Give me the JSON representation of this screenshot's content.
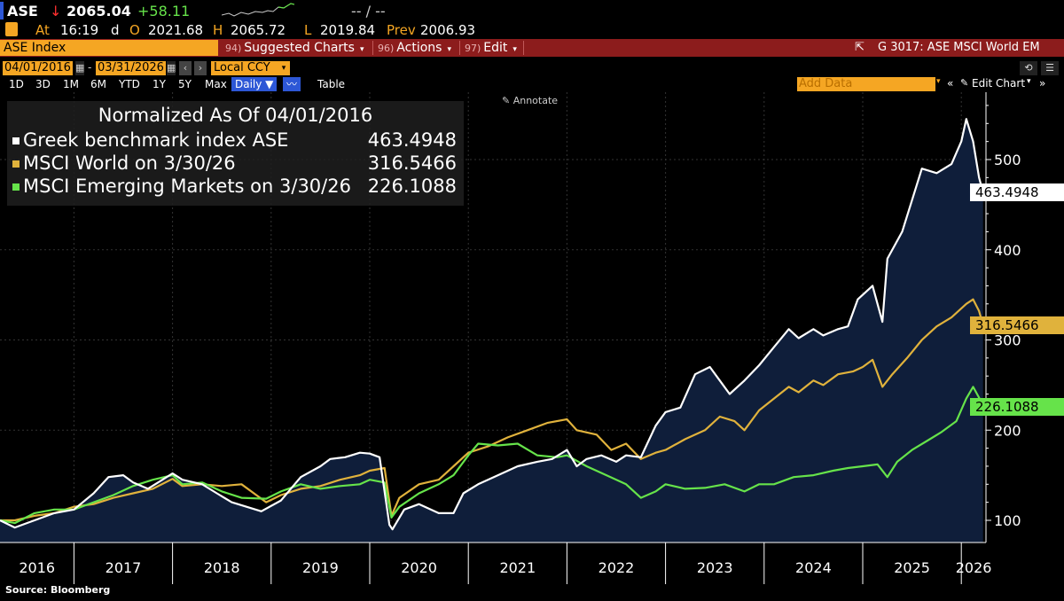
{
  "quote": {
    "ticker": "ASE",
    "arrow": "↓",
    "last": "2065.04",
    "change": "+58.11",
    "bidask": "-- / --",
    "at_label": "At",
    "time": "16:19",
    "d": "d",
    "open_label": "O",
    "open": "2021.68",
    "high_label": "H",
    "high": "2065.72",
    "low_label": "L",
    "low": "2019.84",
    "prev_label": "Prev",
    "prev": "2006.93"
  },
  "toolbar": {
    "security": "ASE Index",
    "suggested_num": "94)",
    "suggested_label": "Suggested Charts",
    "actions_num": "96)",
    "actions_label": "Actions",
    "edit_num": "97)",
    "edit_label": "Edit",
    "chart_title": "G 3017: ASE MSCI World EM"
  },
  "range": {
    "start": "04/01/2016",
    "end": "03/31/2026",
    "currency": "Local CCY"
  },
  "periods": [
    "1D",
    "3D",
    "1M",
    "6M",
    "YTD",
    "1Y",
    "5Y",
    "Max"
  ],
  "frequency": "Daily ▼",
  "table_label": "Table",
  "add_data_placeholder": "Add Data",
  "edit_chart_label": "Edit Chart",
  "annotate_label": "Annotate",
  "source": "Source: Bloomberg",
  "colors": {
    "ase": "#ffffff",
    "world": "#e0b23c",
    "em": "#66e34a",
    "area": "#0f1e3a",
    "toolbar": "#8c1c1c",
    "orange": "#f5a623"
  },
  "chart_data": {
    "type": "line",
    "title": "Normalized As Of 04/01/2016",
    "xlabel": "",
    "ylabel": "",
    "xlim": [
      2016.25,
      2026.25
    ],
    "ylim": [
      80,
      570
    ],
    "yticks": [
      100,
      200,
      300,
      400,
      500
    ],
    "xticks": [
      "2016",
      "2017",
      "2018",
      "2019",
      "2020",
      "2021",
      "2022",
      "2023",
      "2024",
      "2025",
      "2026"
    ],
    "series": [
      {
        "name": "Greek benchmark index ASE",
        "last_value": "463.4948",
        "area_fill": true,
        "points": [
          [
            2016.25,
            100
          ],
          [
            2016.4,
            92
          ],
          [
            2016.6,
            100
          ],
          [
            2016.8,
            108
          ],
          [
            2017.0,
            112
          ],
          [
            2017.2,
            130
          ],
          [
            2017.35,
            148
          ],
          [
            2017.5,
            150
          ],
          [
            2017.6,
            142
          ],
          [
            2017.75,
            135
          ],
          [
            2018.0,
            152
          ],
          [
            2018.1,
            145
          ],
          [
            2018.3,
            140
          ],
          [
            2018.45,
            130
          ],
          [
            2018.6,
            120
          ],
          [
            2018.75,
            115
          ],
          [
            2018.9,
            110
          ],
          [
            2019.1,
            122
          ],
          [
            2019.3,
            148
          ],
          [
            2019.5,
            160
          ],
          [
            2019.6,
            168
          ],
          [
            2019.75,
            170
          ],
          [
            2019.9,
            175
          ],
          [
            2020.0,
            174
          ],
          [
            2020.1,
            170
          ],
          [
            2020.2,
            95
          ],
          [
            2020.23,
            90
          ],
          [
            2020.35,
            112
          ],
          [
            2020.5,
            118
          ],
          [
            2020.7,
            108
          ],
          [
            2020.85,
            108
          ],
          [
            2020.95,
            130
          ],
          [
            2021.1,
            140
          ],
          [
            2021.3,
            150
          ],
          [
            2021.5,
            160
          ],
          [
            2021.7,
            165
          ],
          [
            2021.85,
            168
          ],
          [
            2022.0,
            178
          ],
          [
            2022.1,
            160
          ],
          [
            2022.2,
            168
          ],
          [
            2022.35,
            172
          ],
          [
            2022.5,
            165
          ],
          [
            2022.6,
            172
          ],
          [
            2022.75,
            170
          ],
          [
            2022.9,
            205
          ],
          [
            2023.0,
            220
          ],
          [
            2023.15,
            225
          ],
          [
            2023.3,
            262
          ],
          [
            2023.45,
            270
          ],
          [
            2023.55,
            255
          ],
          [
            2023.65,
            240
          ],
          [
            2023.8,
            255
          ],
          [
            2023.95,
            272
          ],
          [
            2024.1,
            292
          ],
          [
            2024.25,
            312
          ],
          [
            2024.35,
            302
          ],
          [
            2024.5,
            312
          ],
          [
            2024.6,
            305
          ],
          [
            2024.75,
            312
          ],
          [
            2024.85,
            315
          ],
          [
            2024.95,
            345
          ],
          [
            2025.1,
            360
          ],
          [
            2025.2,
            320
          ],
          [
            2025.25,
            390
          ],
          [
            2025.4,
            420
          ],
          [
            2025.5,
            455
          ],
          [
            2025.6,
            490
          ],
          [
            2025.75,
            485
          ],
          [
            2025.9,
            495
          ],
          [
            2026.0,
            520
          ],
          [
            2026.05,
            545
          ],
          [
            2026.12,
            520
          ],
          [
            2026.18,
            480
          ],
          [
            2026.22,
            463.4948
          ]
        ]
      },
      {
        "name": "MSCI World on 3/30/26",
        "last_value": "316.5466",
        "points": [
          [
            2016.25,
            100
          ],
          [
            2016.4,
            100
          ],
          [
            2016.6,
            105
          ],
          [
            2016.8,
            108
          ],
          [
            2017.0,
            115
          ],
          [
            2017.2,
            118
          ],
          [
            2017.4,
            125
          ],
          [
            2017.6,
            130
          ],
          [
            2017.8,
            135
          ],
          [
            2018.0,
            146
          ],
          [
            2018.1,
            138
          ],
          [
            2018.3,
            140
          ],
          [
            2018.5,
            138
          ],
          [
            2018.7,
            140
          ],
          [
            2018.95,
            120
          ],
          [
            2019.1,
            128
          ],
          [
            2019.3,
            135
          ],
          [
            2019.5,
            138
          ],
          [
            2019.7,
            145
          ],
          [
            2019.9,
            150
          ],
          [
            2020.0,
            155
          ],
          [
            2020.15,
            158
          ],
          [
            2020.22,
            105
          ],
          [
            2020.3,
            125
          ],
          [
            2020.5,
            140
          ],
          [
            2020.7,
            145
          ],
          [
            2020.85,
            160
          ],
          [
            2021.0,
            175
          ],
          [
            2021.2,
            182
          ],
          [
            2021.4,
            192
          ],
          [
            2021.6,
            200
          ],
          [
            2021.8,
            208
          ],
          [
            2022.0,
            212
          ],
          [
            2022.1,
            200
          ],
          [
            2022.3,
            195
          ],
          [
            2022.45,
            178
          ],
          [
            2022.6,
            185
          ],
          [
            2022.75,
            168
          ],
          [
            2022.9,
            175
          ],
          [
            2023.0,
            178
          ],
          [
            2023.2,
            190
          ],
          [
            2023.4,
            200
          ],
          [
            2023.55,
            215
          ],
          [
            2023.7,
            210
          ],
          [
            2023.8,
            200
          ],
          [
            2023.95,
            222
          ],
          [
            2024.1,
            235
          ],
          [
            2024.25,
            248
          ],
          [
            2024.35,
            242
          ],
          [
            2024.5,
            255
          ],
          [
            2024.6,
            250
          ],
          [
            2024.75,
            262
          ],
          [
            2024.9,
            265
          ],
          [
            2025.0,
            270
          ],
          [
            2025.1,
            278
          ],
          [
            2025.2,
            248
          ],
          [
            2025.3,
            262
          ],
          [
            2025.45,
            280
          ],
          [
            2025.6,
            300
          ],
          [
            2025.75,
            315
          ],
          [
            2025.9,
            325
          ],
          [
            2026.05,
            340
          ],
          [
            2026.12,
            345
          ],
          [
            2026.18,
            332
          ],
          [
            2026.22,
            316.5466
          ]
        ]
      },
      {
        "name": "MSCI Emerging Markets on 3/30/26",
        "last_value": "226.1088",
        "points": [
          [
            2016.25,
            100
          ],
          [
            2016.4,
            97
          ],
          [
            2016.6,
            108
          ],
          [
            2016.8,
            112
          ],
          [
            2017.0,
            112
          ],
          [
            2017.2,
            120
          ],
          [
            2017.4,
            128
          ],
          [
            2017.6,
            138
          ],
          [
            2017.8,
            145
          ],
          [
            2018.0,
            150
          ],
          [
            2018.1,
            140
          ],
          [
            2018.3,
            142
          ],
          [
            2018.5,
            132
          ],
          [
            2018.7,
            125
          ],
          [
            2018.95,
            124
          ],
          [
            2019.1,
            132
          ],
          [
            2019.3,
            140
          ],
          [
            2019.5,
            135
          ],
          [
            2019.7,
            138
          ],
          [
            2019.9,
            140
          ],
          [
            2020.0,
            145
          ],
          [
            2020.15,
            142
          ],
          [
            2020.22,
            103
          ],
          [
            2020.3,
            115
          ],
          [
            2020.5,
            130
          ],
          [
            2020.7,
            140
          ],
          [
            2020.85,
            150
          ],
          [
            2021.0,
            172
          ],
          [
            2021.1,
            185
          ],
          [
            2021.3,
            183
          ],
          [
            2021.5,
            185
          ],
          [
            2021.7,
            172
          ],
          [
            2021.9,
            170
          ],
          [
            2022.0,
            172
          ],
          [
            2022.2,
            160
          ],
          [
            2022.4,
            150
          ],
          [
            2022.6,
            140
          ],
          [
            2022.75,
            125
          ],
          [
            2022.9,
            132
          ],
          [
            2023.0,
            140
          ],
          [
            2023.2,
            135
          ],
          [
            2023.4,
            136
          ],
          [
            2023.6,
            140
          ],
          [
            2023.8,
            132
          ],
          [
            2023.95,
            140
          ],
          [
            2024.1,
            140
          ],
          [
            2024.3,
            148
          ],
          [
            2024.5,
            150
          ],
          [
            2024.7,
            155
          ],
          [
            2024.85,
            158
          ],
          [
            2025.0,
            160
          ],
          [
            2025.15,
            162
          ],
          [
            2025.25,
            148
          ],
          [
            2025.35,
            165
          ],
          [
            2025.5,
            178
          ],
          [
            2025.65,
            188
          ],
          [
            2025.8,
            198
          ],
          [
            2025.95,
            210
          ],
          [
            2026.05,
            235
          ],
          [
            2026.12,
            248
          ],
          [
            2026.18,
            236
          ],
          [
            2026.22,
            226.1088
          ]
        ]
      }
    ]
  }
}
